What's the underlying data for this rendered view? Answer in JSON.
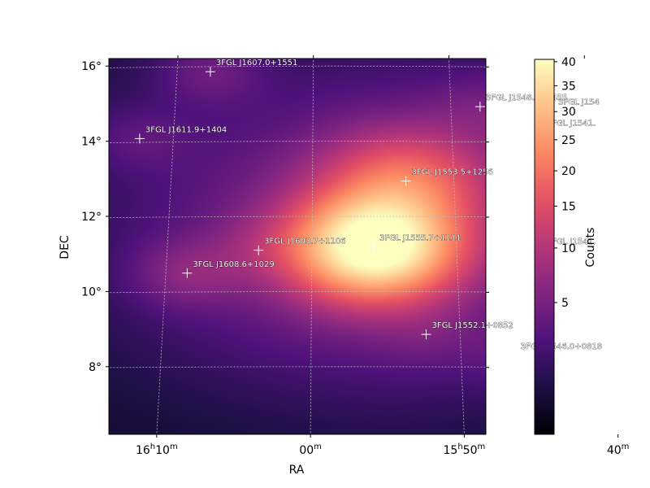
{
  "chart_data": {
    "type": "heatmap",
    "title": "",
    "xlabel": "RA",
    "ylabel": "DEC",
    "colorbar_label": "Counts",
    "colormap": "magma",
    "colormap_stops": [
      "#000004",
      "#1c1044",
      "#4f127b",
      "#812581",
      "#b5367a",
      "#e55064",
      "#fb8761",
      "#fec287",
      "#fcfdbf"
    ],
    "color_scale": "sqrt",
    "color_range": [
      0,
      40.5
    ],
    "colorbar_ticks": [
      5,
      10,
      15,
      20,
      25,
      30,
      35,
      40
    ],
    "ra_range_deg": [
      237.0,
      243.5
    ],
    "dec_range_deg": [
      6.2,
      16.2
    ],
    "ra_ticks": [
      {
        "label_h": "16",
        "label_m": "10",
        "ra_deg": 242.5
      },
      {
        "label_h": "",
        "label_m": "00",
        "ra_deg": 240.0
      },
      {
        "label_h": "15",
        "label_m": "50",
        "ra_deg": 237.5
      },
      {
        "label_h": "",
        "label_m": "40",
        "ra_deg": 235.0
      }
    ],
    "dec_ticks": [
      {
        "label": "8°",
        "dec": 8
      },
      {
        "label": "10°",
        "dec": 10
      },
      {
        "label": "12°",
        "dec": 12
      },
      {
        "label": "14°",
        "dec": 14
      },
      {
        "label": "16°",
        "dec": 16
      }
    ],
    "grid": true,
    "sources": [
      {
        "name": "3FGL J1607.0+1551",
        "ra": 241.75,
        "dec": 15.85,
        "peak": 3
      },
      {
        "name": "3FGL J1548.4+1455",
        "ra": 237.1,
        "dec": 14.92,
        "peak": 2
      },
      {
        "name": "3FGL J154",
        "ra": 235.85,
        "dec": 14.8,
        "peak": 1.5
      },
      {
        "name": "3FGL J1541.",
        "ra": 236.05,
        "dec": 14.24,
        "peak": 1.5
      },
      {
        "name": "3FGL J1611.9+1404",
        "ra": 242.97,
        "dec": 14.07,
        "peak": 2
      },
      {
        "name": "3FGL J1553.5+1256",
        "ra": 238.38,
        "dec": 12.94,
        "peak": 14
      },
      {
        "name": "3FGL J1603.7+1106",
        "ra": 240.92,
        "dec": 11.1,
        "peak": 2
      },
      {
        "name": "3FGL J1555.7+1111",
        "ra": 238.93,
        "dec": 11.19,
        "peak": 40
      },
      {
        "name": "3FGL J1541.",
        "ra": 236.05,
        "dec": 11.09,
        "peak": 1.5
      },
      {
        "name": "3FGL J1608.6+1029",
        "ra": 242.15,
        "dec": 10.49,
        "peak": 4
      },
      {
        "name": "3FGL J1552.1+0852",
        "ra": 238.03,
        "dec": 8.86,
        "peak": 1.5
      },
      {
        "name": "3FGL J1546.0+0818",
        "ra": 236.5,
        "dec": 8.3,
        "peak": 1.5
      }
    ]
  }
}
